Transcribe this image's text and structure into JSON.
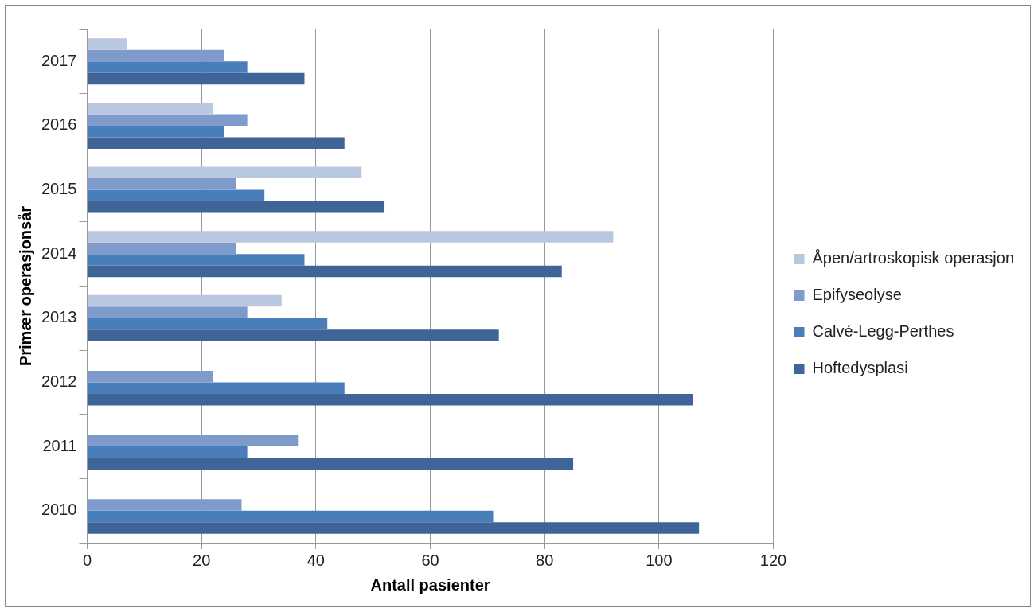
{
  "chart_data": {
    "type": "bar",
    "orientation": "horizontal",
    "xlabel": "Antall pasienter",
    "ylabel": "Primær operasjonsår",
    "categories": [
      "2017",
      "2016",
      "2015",
      "2014",
      "2013",
      "2012",
      "2011",
      "2010"
    ],
    "series": [
      {
        "name": "Åpen/artroskopisk operasjon",
        "color": "#b9c7e1",
        "values": [
          7,
          22,
          48,
          92,
          34,
          null,
          null,
          null
        ]
      },
      {
        "name": "Epifyseolyse",
        "color": "#7f9bcb",
        "values": [
          24,
          28,
          26,
          26,
          28,
          22,
          37,
          27
        ]
      },
      {
        "name": "Calvé-Legg-Perthes",
        "color": "#4a7ebb",
        "values": [
          28,
          24,
          31,
          38,
          42,
          45,
          28,
          71
        ]
      },
      {
        "name": "Hoftedysplasi",
        "color": "#3e6498",
        "values": [
          38,
          45,
          52,
          83,
          72,
          106,
          85,
          107
        ]
      }
    ],
    "xlim": [
      0,
      120
    ],
    "xticks": [
      0,
      20,
      40,
      60,
      80,
      100,
      120
    ],
    "grid": "x",
    "legend": "right"
  }
}
